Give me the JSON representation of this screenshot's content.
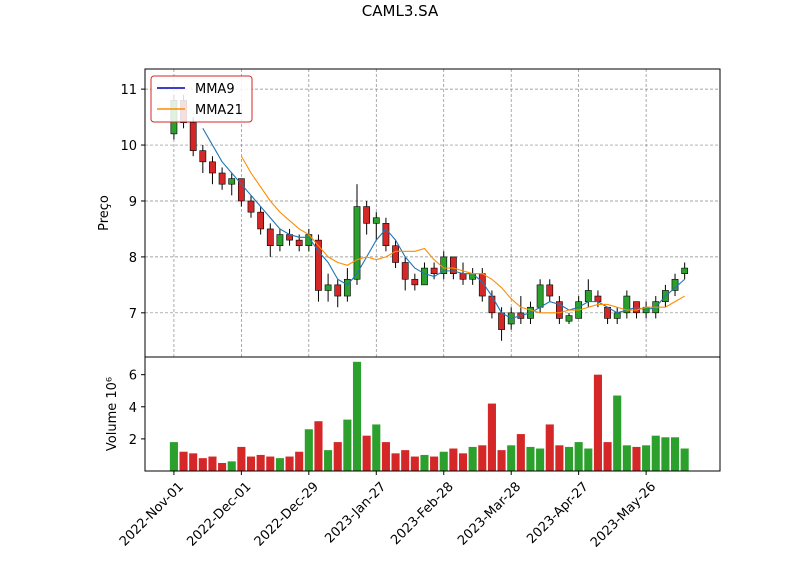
{
  "chart_data": {
    "type": "candlestick",
    "title": "CAML3.SA",
    "x": [
      0,
      3,
      6,
      9,
      12,
      15,
      18,
      21,
      24,
      27,
      30,
      33,
      36,
      39,
      42,
      45,
      48,
      51,
      54,
      57,
      60,
      63,
      66,
      69,
      72,
      75,
      78,
      81,
      84,
      87,
      90,
      93,
      96,
      99,
      102,
      105,
      108,
      111,
      114,
      117,
      120,
      123,
      126,
      129,
      132,
      135,
      138,
      141,
      144,
      147,
      150,
      153,
      156,
      159
    ],
    "open": [
      10.2,
      10.8,
      10.4,
      9.9,
      9.7,
      9.5,
      9.3,
      9.4,
      9.0,
      8.8,
      8.5,
      8.2,
      8.4,
      8.3,
      8.2,
      8.3,
      7.4,
      7.5,
      7.3,
      7.6,
      8.9,
      8.6,
      8.6,
      8.2,
      7.9,
      7.6,
      7.5,
      7.8,
      7.7,
      8.0,
      7.7,
      7.6,
      7.7,
      7.3,
      7.0,
      6.8,
      7.0,
      6.9,
      7.1,
      7.5,
      7.2,
      6.85,
      6.9,
      7.2,
      7.3,
      7.1,
      6.9,
      7.0,
      7.2,
      7.0,
      7.0,
      7.2,
      7.4,
      7.7
    ],
    "high": [
      10.9,
      10.9,
      10.5,
      10.0,
      9.8,
      9.6,
      9.5,
      9.4,
      9.1,
      8.9,
      8.6,
      8.5,
      8.5,
      8.4,
      8.5,
      8.4,
      7.7,
      7.6,
      7.8,
      9.3,
      9.0,
      8.8,
      8.7,
      8.3,
      8.0,
      7.7,
      7.9,
      7.9,
      8.1,
      8.0,
      7.9,
      7.8,
      7.8,
      7.4,
      7.1,
      7.1,
      7.3,
      7.2,
      7.6,
      7.6,
      7.3,
      7.0,
      7.3,
      7.6,
      7.4,
      7.1,
      7.1,
      7.4,
      7.2,
      7.2,
      7.3,
      7.5,
      7.7,
      7.9
    ],
    "low": [
      10.1,
      10.3,
      9.8,
      9.5,
      9.3,
      9.2,
      9.1,
      8.9,
      8.7,
      8.4,
      8.0,
      8.1,
      8.2,
      8.1,
      8.1,
      7.2,
      7.2,
      7.1,
      7.2,
      7.5,
      8.4,
      8.3,
      8.1,
      7.8,
      7.4,
      7.4,
      7.5,
      7.6,
      7.6,
      7.6,
      7.5,
      7.5,
      7.2,
      6.9,
      6.5,
      6.7,
      6.8,
      6.8,
      7.0,
      7.2,
      6.8,
      6.8,
      6.9,
      7.1,
      7.1,
      6.8,
      6.8,
      6.9,
      6.9,
      6.9,
      6.9,
      7.1,
      7.3,
      7.6
    ],
    "close": [
      10.8,
      10.4,
      9.9,
      9.7,
      9.5,
      9.3,
      9.4,
      9.0,
      8.8,
      8.5,
      8.2,
      8.4,
      8.3,
      8.2,
      8.4,
      7.4,
      7.5,
      7.3,
      7.6,
      8.9,
      8.6,
      8.7,
      8.2,
      7.9,
      7.6,
      7.5,
      7.8,
      7.7,
      8.0,
      7.7,
      7.6,
      7.7,
      7.3,
      7.0,
      6.7,
      7.0,
      6.9,
      7.1,
      7.5,
      7.3,
      6.9,
      6.95,
      7.2,
      7.4,
      7.2,
      6.9,
      7.0,
      7.3,
      7.0,
      7.1,
      7.2,
      7.4,
      7.6,
      7.8
    ],
    "up_color": "#2ca02c",
    "down_color": "#d62728",
    "series": [
      {
        "name": "MMA9",
        "color": "#1f77b4",
        "legend_color": "#0000b0",
        "values": [
          null,
          null,
          null,
          10.3,
          10.0,
          9.7,
          9.5,
          9.3,
          9.1,
          8.9,
          8.7,
          8.5,
          8.4,
          8.35,
          8.35,
          8.1,
          7.9,
          7.6,
          7.5,
          7.7,
          8.0,
          8.3,
          8.5,
          8.3,
          8.0,
          7.8,
          7.7,
          7.65,
          7.75,
          7.75,
          7.7,
          7.7,
          7.55,
          7.3,
          7.0,
          6.9,
          6.95,
          7.0,
          7.1,
          7.2,
          7.15,
          7.05,
          7.1,
          7.2,
          7.2,
          7.1,
          7.0,
          7.05,
          7.1,
          7.05,
          7.1,
          7.3,
          7.45,
          7.6
        ]
      },
      {
        "name": "MMA21",
        "color": "#ff8c00",
        "legend_color": "#ff8c00",
        "values": [
          null,
          null,
          null,
          null,
          null,
          null,
          null,
          9.8,
          9.5,
          9.25,
          9.0,
          8.8,
          8.65,
          8.5,
          8.4,
          8.2,
          8.0,
          7.9,
          7.85,
          7.95,
          8.0,
          7.95,
          8.0,
          8.1,
          8.1,
          8.1,
          8.15,
          7.95,
          7.8,
          7.8,
          7.75,
          7.7,
          7.7,
          7.6,
          7.45,
          7.25,
          7.1,
          7.05,
          7.0,
          7.0,
          7.0,
          7.05,
          7.05,
          7.1,
          7.15,
          7.15,
          7.1,
          7.05,
          7.05,
          7.1,
          7.1,
          7.1,
          7.2,
          7.3
        ]
      }
    ],
    "ylabel": "Preço",
    "ylim": [
      6.21,
      11.36
    ],
    "yticks": [
      7,
      8,
      9,
      10,
      11
    ],
    "xlim": [
      -9,
      170
    ],
    "xticks": [
      {
        "value": 0,
        "label": "2022-Nov-01"
      },
      {
        "value": 21,
        "label": "2022-Dec-01"
      },
      {
        "value": 42,
        "label": "2022-Dec-29"
      },
      {
        "value": 63,
        "label": "2023-Jan-27"
      },
      {
        "value": 84,
        "label": "2023-Feb-28"
      },
      {
        "value": 105,
        "label": "2023-Mar-28"
      },
      {
        "value": 126,
        "label": "2023-Apr-27"
      },
      {
        "value": 147,
        "label": "2023-May-26"
      }
    ],
    "grid": true,
    "legend": "upper left",
    "volume": {
      "ylabel": "Volume  10⁶",
      "values": [
        1.8,
        1.2,
        1.1,
        0.8,
        0.9,
        0.5,
        0.6,
        1.5,
        0.9,
        1.0,
        0.9,
        0.8,
        0.9,
        1.2,
        2.6,
        3.1,
        1.3,
        1.8,
        3.2,
        6.8,
        2.2,
        2.9,
        1.8,
        1.1,
        1.3,
        0.9,
        1.0,
        0.9,
        1.2,
        1.4,
        1.1,
        1.5,
        1.6,
        4.2,
        1.3,
        1.6,
        2.3,
        1.5,
        1.4,
        2.9,
        1.6,
        1.5,
        1.8,
        1.4,
        6.0,
        1.8,
        4.7,
        1.6,
        1.5,
        1.6,
        2.2,
        2.1,
        2.1,
        1.4
      ],
      "ylim": [
        0,
        7.1
      ],
      "yticks": [
        2,
        4,
        6
      ]
    }
  }
}
